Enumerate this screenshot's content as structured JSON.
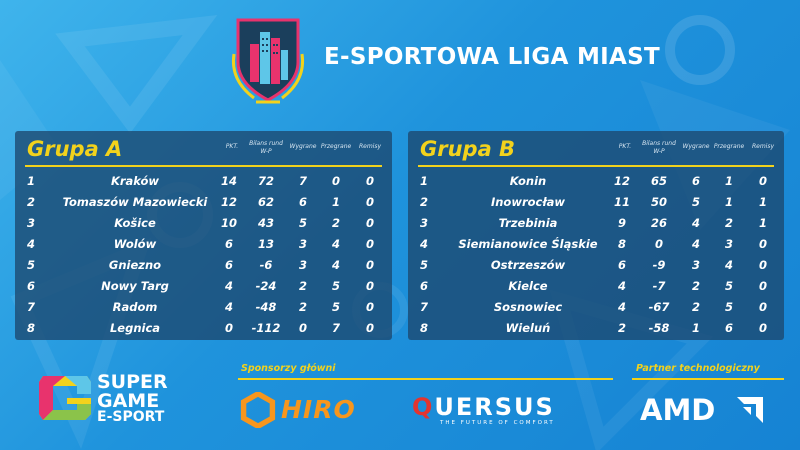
{
  "header": {
    "title": "E-SPORTOWA LIGA MIAST"
  },
  "columns": {
    "pkt": "PKT.",
    "bilans_1": "Bilans rund",
    "bilans_2": "W-P",
    "won": "Wygrane",
    "lost": "Przegrane",
    "draw": "Remisy"
  },
  "groups": [
    {
      "name": "Grupa A",
      "rows": [
        {
          "pos": "1",
          "city": "Kraków",
          "pkt": "14",
          "bilans": "72",
          "won": "7",
          "lost": "0",
          "draw": "0"
        },
        {
          "pos": "2",
          "city": "Tomaszów Mazowiecki",
          "pkt": "12",
          "bilans": "62",
          "won": "6",
          "lost": "1",
          "draw": "0"
        },
        {
          "pos": "3",
          "city": "Košice",
          "pkt": "10",
          "bilans": "43",
          "won": "5",
          "lost": "2",
          "draw": "0"
        },
        {
          "pos": "4",
          "city": "Wolów",
          "pkt": "6",
          "bilans": "13",
          "won": "3",
          "lost": "4",
          "draw": "0"
        },
        {
          "pos": "5",
          "city": "Gniezno",
          "pkt": "6",
          "bilans": "-6",
          "won": "3",
          "lost": "4",
          "draw": "0"
        },
        {
          "pos": "6",
          "city": "Nowy Targ",
          "pkt": "4",
          "bilans": "-24",
          "won": "2",
          "lost": "5",
          "draw": "0"
        },
        {
          "pos": "7",
          "city": "Radom",
          "pkt": "4",
          "bilans": "-48",
          "won": "2",
          "lost": "5",
          "draw": "0"
        },
        {
          "pos": "8",
          "city": "Legnica",
          "pkt": "0",
          "bilans": "-112",
          "won": "0",
          "lost": "7",
          "draw": "0"
        }
      ]
    },
    {
      "name": "Grupa B",
      "rows": [
        {
          "pos": "1",
          "city": "Konin",
          "pkt": "12",
          "bilans": "65",
          "won": "6",
          "lost": "1",
          "draw": "0"
        },
        {
          "pos": "2",
          "city": "Inowrocław",
          "pkt": "11",
          "bilans": "50",
          "won": "5",
          "lost": "1",
          "draw": "1"
        },
        {
          "pos": "3",
          "city": "Trzebinia",
          "pkt": "9",
          "bilans": "26",
          "won": "4",
          "lost": "2",
          "draw": "1"
        },
        {
          "pos": "4",
          "city": "Siemianowice Śląskie",
          "pkt": "8",
          "bilans": "0",
          "won": "4",
          "lost": "3",
          "draw": "0"
        },
        {
          "pos": "5",
          "city": "Ostrzeszów",
          "pkt": "6",
          "bilans": "-9",
          "won": "3",
          "lost": "4",
          "draw": "0"
        },
        {
          "pos": "6",
          "city": "Kielce",
          "pkt": "4",
          "bilans": "-7",
          "won": "2",
          "lost": "5",
          "draw": "0"
        },
        {
          "pos": "7",
          "city": "Sosnowiec",
          "pkt": "4",
          "bilans": "-67",
          "won": "2",
          "lost": "5",
          "draw": "0"
        },
        {
          "pos": "8",
          "city": "Wieluń",
          "pkt": "2",
          "bilans": "-58",
          "won": "1",
          "lost": "6",
          "draw": "0"
        }
      ]
    }
  ],
  "footer": {
    "organizer_line1": "SUPER",
    "organizer_line2": "GAME",
    "organizer_line3": "E-SPORT",
    "sponsors_label": "Sponsorzy główni",
    "sponsor_1": "HIRO",
    "sponsor_2_q": "Q",
    "sponsor_2_rest": "UERSUS",
    "sponsor_2_tag": "THE FUTURE OF COMFORT",
    "partner_label": "Partner technologiczny",
    "partner": "AMD"
  },
  "icons": {
    "league_logo": "city-skyline-shield-icon",
    "organizer_logo": "super-game-g-icon",
    "hiro_logo": "hexagon-icon",
    "amd_logo": "amd-arrow-icon"
  },
  "colors": {
    "accent": "#f2d21c",
    "panel": "#1c486e",
    "background": "#1f93dc",
    "hiro": "#f7961d",
    "quersus_red": "#e3342f",
    "logo_pink": "#e8336d"
  }
}
